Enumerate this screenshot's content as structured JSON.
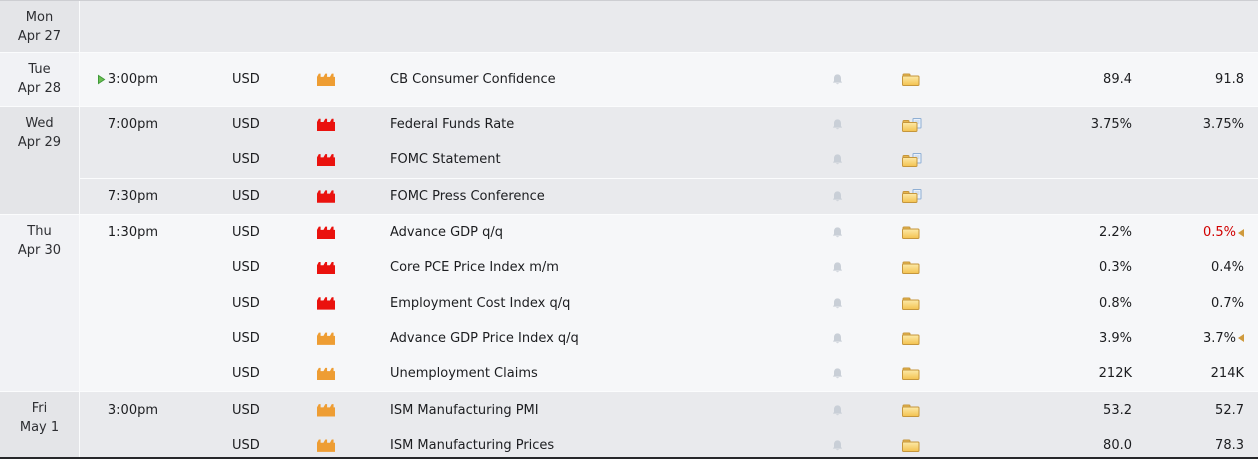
{
  "calendar": {
    "days": [
      {
        "key": "mon",
        "day": "Mon",
        "date": "Apr 27",
        "shade": "gray",
        "rows": [
          {}
        ]
      },
      {
        "key": "tue",
        "day": "Tue",
        "date": "Apr 28",
        "shade": "light",
        "rows": [
          {
            "time": "3:00pm",
            "upnext": true,
            "currency": "USD",
            "impact": "orange",
            "event": "CB Consumer Confidence",
            "bell": true,
            "folder": "folder",
            "forecast": "89.4",
            "previous": "91.8"
          }
        ]
      },
      {
        "key": "wed",
        "day": "Wed",
        "date": "Apr 29",
        "shade": "gray",
        "rows": [
          {
            "time": "7:00pm",
            "currency": "USD",
            "impact": "red",
            "event": "Federal Funds Rate",
            "bell": true,
            "folder": "folder-doc",
            "forecast": "3.75%",
            "previous": "3.75%"
          },
          {
            "currency": "USD",
            "impact": "red",
            "event": "FOMC Statement",
            "bell": true,
            "folder": "folder-doc"
          },
          {
            "time": "7:30pm",
            "divider": true,
            "currency": "USD",
            "impact": "red",
            "event": "FOMC Press Conference",
            "bell": true,
            "folder": "folder-doc"
          }
        ]
      },
      {
        "key": "thu",
        "day": "Thu",
        "date": "Apr 30",
        "shade": "light",
        "rows": [
          {
            "time": "1:30pm",
            "currency": "USD",
            "impact": "red",
            "event": "Advance GDP q/q",
            "bell": true,
            "folder": "folder",
            "forecast": "2.2%",
            "previous": "0.5%",
            "previous_red": true,
            "revised": true
          },
          {
            "currency": "USD",
            "impact": "red",
            "event": "Core PCE Price Index m/m",
            "bell": true,
            "folder": "folder",
            "forecast": "0.3%",
            "previous": "0.4%"
          },
          {
            "currency": "USD",
            "impact": "red",
            "event": "Employment Cost Index q/q",
            "bell": true,
            "folder": "folder",
            "forecast": "0.8%",
            "previous": "0.7%"
          },
          {
            "currency": "USD",
            "impact": "orange",
            "event": "Advance GDP Price Index q/q",
            "bell": true,
            "folder": "folder",
            "forecast": "3.9%",
            "previous": "3.7%",
            "revised": true
          },
          {
            "currency": "USD",
            "impact": "orange",
            "event": "Unemployment Claims",
            "bell": true,
            "folder": "folder",
            "forecast": "212K",
            "previous": "214K"
          }
        ]
      },
      {
        "key": "fri",
        "day": "Fri",
        "date": "May 1",
        "shade": "gray",
        "rows": [
          {
            "time": "3:00pm",
            "currency": "USD",
            "impact": "orange",
            "event": "ISM Manufacturing PMI",
            "bell": true,
            "folder": "folder",
            "forecast": "53.2",
            "previous": "52.7"
          },
          {
            "currency": "USD",
            "impact": "orange",
            "event": "ISM Manufacturing Prices",
            "bell": true,
            "folder": "folder",
            "forecast": "80.0",
            "previous": "78.3"
          }
        ]
      }
    ],
    "colors": {
      "impact_red": "#ea120e",
      "impact_orange": "#ee9d33",
      "previous_revised_red": "#d10000",
      "upnext_green": "#6cbf52",
      "revised_marker": "#cf9a3d",
      "folder_yellow": "#f3c24f",
      "bell_gray": "#c9cfd7",
      "band_gray": "#e9eaed",
      "band_light": "#f6f7f9"
    },
    "icons": {
      "upnext": "upnext-arrow-icon",
      "impact": "impact-factory-icon",
      "bell": "alert-bell-icon",
      "folder": "attachments-folder-icon",
      "folder_doc": "folder-with-document-icon",
      "revised": "revised-marker-icon"
    }
  }
}
